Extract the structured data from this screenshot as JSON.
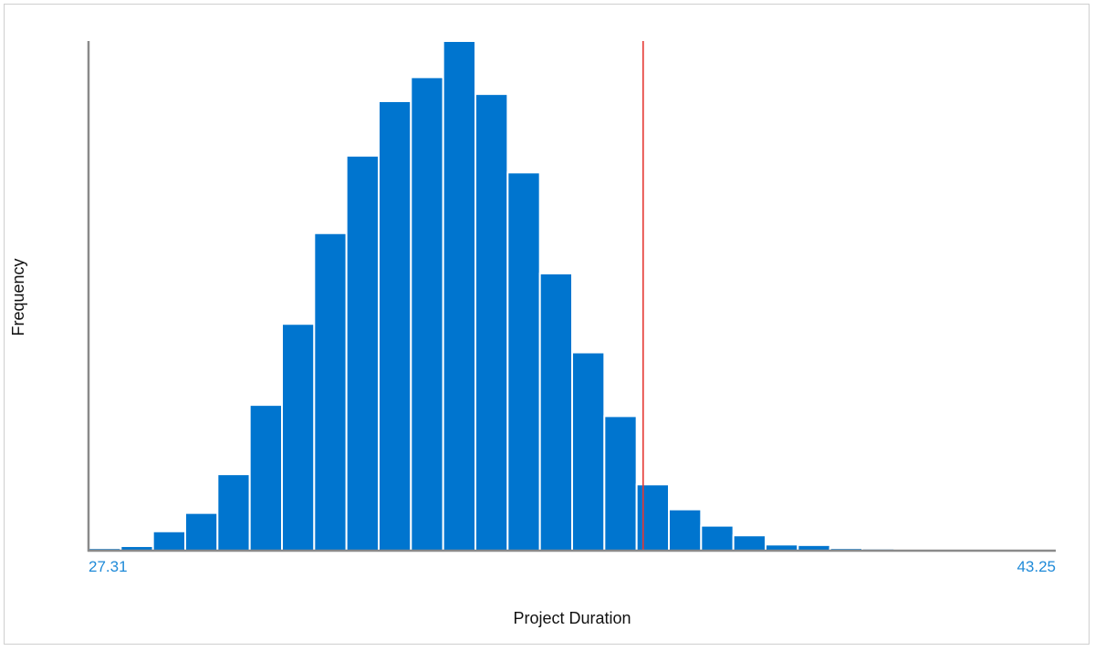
{
  "chart_data": {
    "type": "bar",
    "subtype": "histogram",
    "xlabel": "Project Duration",
    "ylabel": "Frequency",
    "x_min_label": "27.31",
    "x_max_label": "43.25",
    "xlim": [
      27.31,
      43.25
    ],
    "bin_count": 30,
    "values": [
      0.5,
      0.9,
      3.8,
      7.4,
      15.0,
      28.6,
      44.5,
      62.3,
      77.5,
      88.2,
      92.9,
      100,
      89.6,
      74.2,
      54.4,
      38.9,
      26.4,
      13.0,
      8.1,
      4.9,
      3.0,
      1.2,
      1.1,
      0.5,
      0.4,
      0.3,
      0.2,
      0.15,
      0.1,
      0.05
    ],
    "ylim": [
      0,
      100
    ],
    "marker_line": {
      "x": 36.45,
      "color": "#e53935"
    },
    "colors": {
      "bar": "#0075cf",
      "bar_edge": "#ffffff",
      "axis": "#8a8a8a",
      "tick_label": "#1f8ad8"
    }
  }
}
